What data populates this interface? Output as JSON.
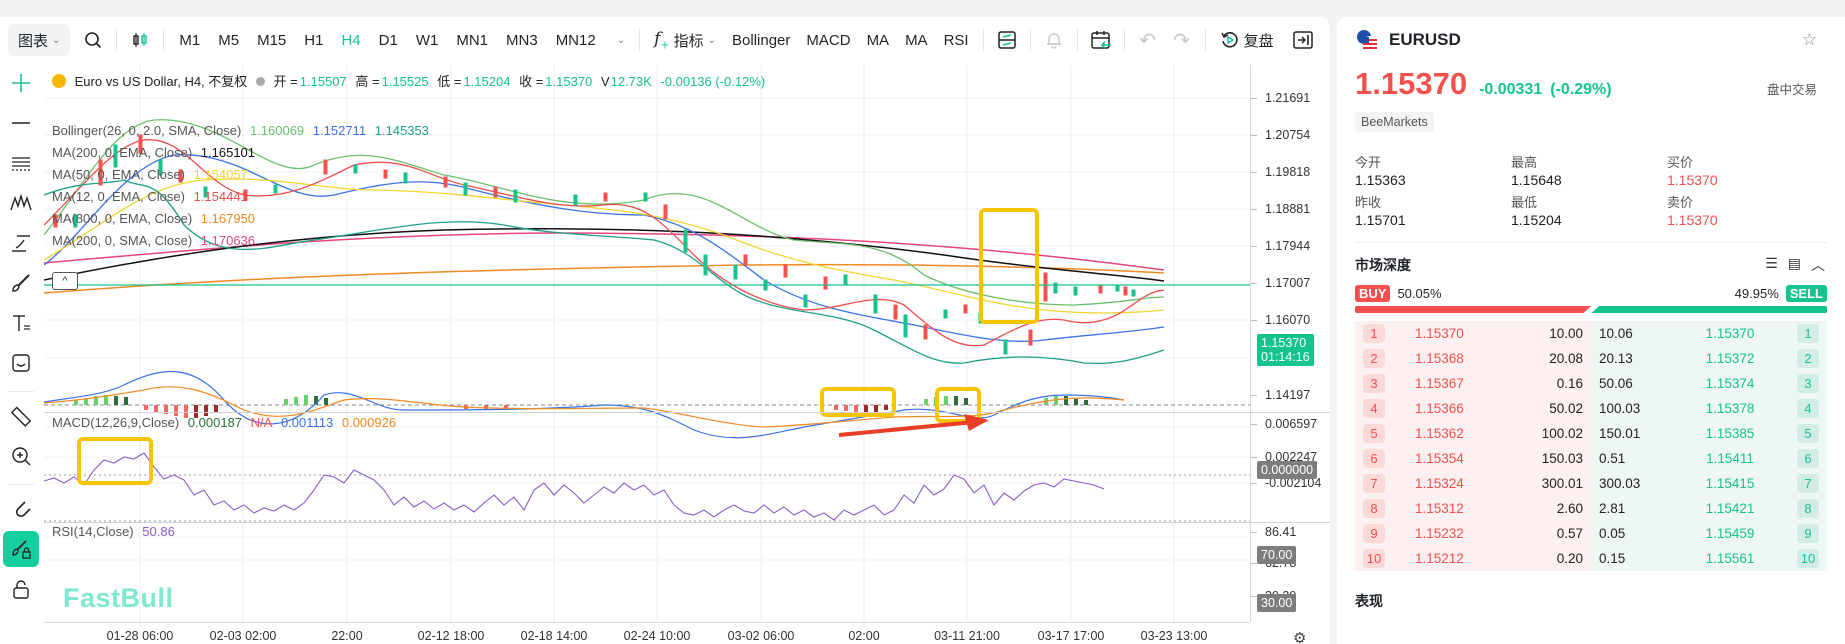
{
  "toolbar": {
    "chart_type_label": "图表",
    "timeframes": [
      "M1",
      "M5",
      "M15",
      "H1",
      "H4",
      "D1",
      "W1",
      "MN1",
      "MN3",
      "MN12"
    ],
    "active_timeframe": "H4",
    "indicators_label": "指标",
    "indicator_shortcuts": [
      "Bollinger",
      "MACD",
      "MA",
      "MA",
      "RSI"
    ],
    "replay_label": "复盘"
  },
  "left_tools": [
    "crosshair",
    "trend-line",
    "horizontal-lines",
    "pattern",
    "arrow-line",
    "brush",
    "text",
    "emoji",
    "ruler",
    "zoom-in",
    "magnet",
    "lock-drawing",
    "unlock"
  ],
  "main_legend": {
    "title": "Euro vs US Dollar, H4, 不复权",
    "open_label": "开 =",
    "open": "1.15507",
    "high_label": "高 =",
    "high": "1.15525",
    "low_label": "低 =",
    "low": "1.15204",
    "close_label": "收 =",
    "close": "1.15370",
    "volume_label": "V",
    "volume": "12.73K",
    "change": "-0.00136 (-0.12%)"
  },
  "indicators": [
    {
      "label": "Bollinger(26, 0, 2.0, SMA, Close)",
      "values": [
        {
          "v": "1.160069",
          "color": "#6cbf6c"
        },
        {
          "v": "1.152711",
          "color": "#3b72e8"
        },
        {
          "v": "1.145353",
          "color": "#1fa08a"
        }
      ]
    },
    {
      "label": "MA(200, 0, EMA, Close)",
      "values": [
        {
          "v": "1.165101",
          "color": "#111111"
        }
      ]
    },
    {
      "label": "MA(50, 0, EMA, Close)",
      "values": [
        {
          "v": "1.154057",
          "color": "#f2d531"
        }
      ]
    },
    {
      "label": "MA(12, 0, EMA, Close)",
      "values": [
        {
          "v": "1.154441",
          "color": "#ef4d4d"
        }
      ]
    },
    {
      "label": "MA(800, 0, EMA, Close)",
      "values": [
        {
          "v": "1.167950",
          "color": "#f08a24"
        }
      ]
    },
    {
      "label": "MA(200, 0, SMA, Close)",
      "values": [
        {
          "v": "1.170636",
          "color": "#e7467c"
        }
      ]
    }
  ],
  "price_axis": {
    "ticks": [
      "1.21691",
      "1.20754",
      "1.19818",
      "1.18881",
      "1.17944",
      "1.17007",
      "1.16070",
      "1.14197"
    ],
    "current_price": "1.15370",
    "countdown": "01:14:16"
  },
  "macd": {
    "label": "MACD(12,26,9,Close)",
    "hist": "0.000187",
    "na": "N/A",
    "macd": "0.001113",
    "signal": "0.000926",
    "ticks": [
      "0.006597",
      "0.002247",
      "-0.002104"
    ],
    "zero_tag": "0.000000"
  },
  "rsi": {
    "label": "RSI(14,Close)",
    "value": "50.86",
    "ticks": [
      "86.41",
      "62.78",
      "39.39"
    ],
    "upper_tag": "70.00",
    "lower_tag": "30.00"
  },
  "time_axis": [
    "01-28 06:00",
    "02-03 02:00",
    "22:00",
    "02-12 18:00",
    "02-18 14:00",
    "02-24 10:00",
    "03-02 06:00",
    "02:00",
    "03-11 21:00",
    "03-17 17:00",
    "03-23 13:00"
  ],
  "watermark": "FastBull",
  "colors": {
    "up": "#14c38e",
    "down": "#f4504e",
    "accent": "#14d0a0",
    "highlight": "#f7c400"
  },
  "side": {
    "symbol": "EURUSD",
    "price": "1.15370",
    "change": "-0.00331",
    "change_pct": "(-0.29%)",
    "session": "盘中交易",
    "broker": "BeeMarkets",
    "stats": [
      {
        "label": "今开",
        "value": "1.15363",
        "red": false
      },
      {
        "label": "最高",
        "value": "1.15648",
        "red": false
      },
      {
        "label": "买价",
        "value": "1.15370",
        "red": true
      },
      {
        "label": "昨收",
        "value": "1.15701",
        "red": false
      },
      {
        "label": "最低",
        "value": "1.15204",
        "red": false
      },
      {
        "label": "卖价",
        "value": "1.15370",
        "red": true
      }
    ],
    "depth_title": "市场深度",
    "buy_label": "BUY",
    "buy_pct": "50.05%",
    "sell_label": "SELL",
    "sell_pct": "49.95%",
    "bids": [
      {
        "i": "1",
        "p": "1.15370",
        "q": "10.00"
      },
      {
        "i": "2",
        "p": "1.15368",
        "q": "20.08"
      },
      {
        "i": "3",
        "p": "1.15367",
        "q": "0.16"
      },
      {
        "i": "4",
        "p": "1.15366",
        "q": "50.02"
      },
      {
        "i": "5",
        "p": "1.15362",
        "q": "100.02"
      },
      {
        "i": "6",
        "p": "1.15354",
        "q": "150.03"
      },
      {
        "i": "7",
        "p": "1.15324",
        "q": "300.01"
      },
      {
        "i": "8",
        "p": "1.15312",
        "q": "2.60"
      },
      {
        "i": "9",
        "p": "1.15232",
        "q": "0.57"
      },
      {
        "i": "10",
        "p": "1.15212",
        "q": "0.20"
      }
    ],
    "asks": [
      {
        "i": "1",
        "p": "1.15370",
        "q": "10.06"
      },
      {
        "i": "2",
        "p": "1.15372",
        "q": "20.13"
      },
      {
        "i": "3",
        "p": "1.15374",
        "q": "50.06"
      },
      {
        "i": "4",
        "p": "1.15378",
        "q": "100.03"
      },
      {
        "i": "5",
        "p": "1.15385",
        "q": "150.01"
      },
      {
        "i": "6",
        "p": "1.15411",
        "q": "0.51"
      },
      {
        "i": "7",
        "p": "1.15415",
        "q": "300.03"
      },
      {
        "i": "8",
        "p": "1.15421",
        "q": "2.81"
      },
      {
        "i": "9",
        "p": "1.15459",
        "q": "0.05"
      },
      {
        "i": "10",
        "p": "1.15561",
        "q": "0.15"
      }
    ],
    "next_section": "表现"
  }
}
